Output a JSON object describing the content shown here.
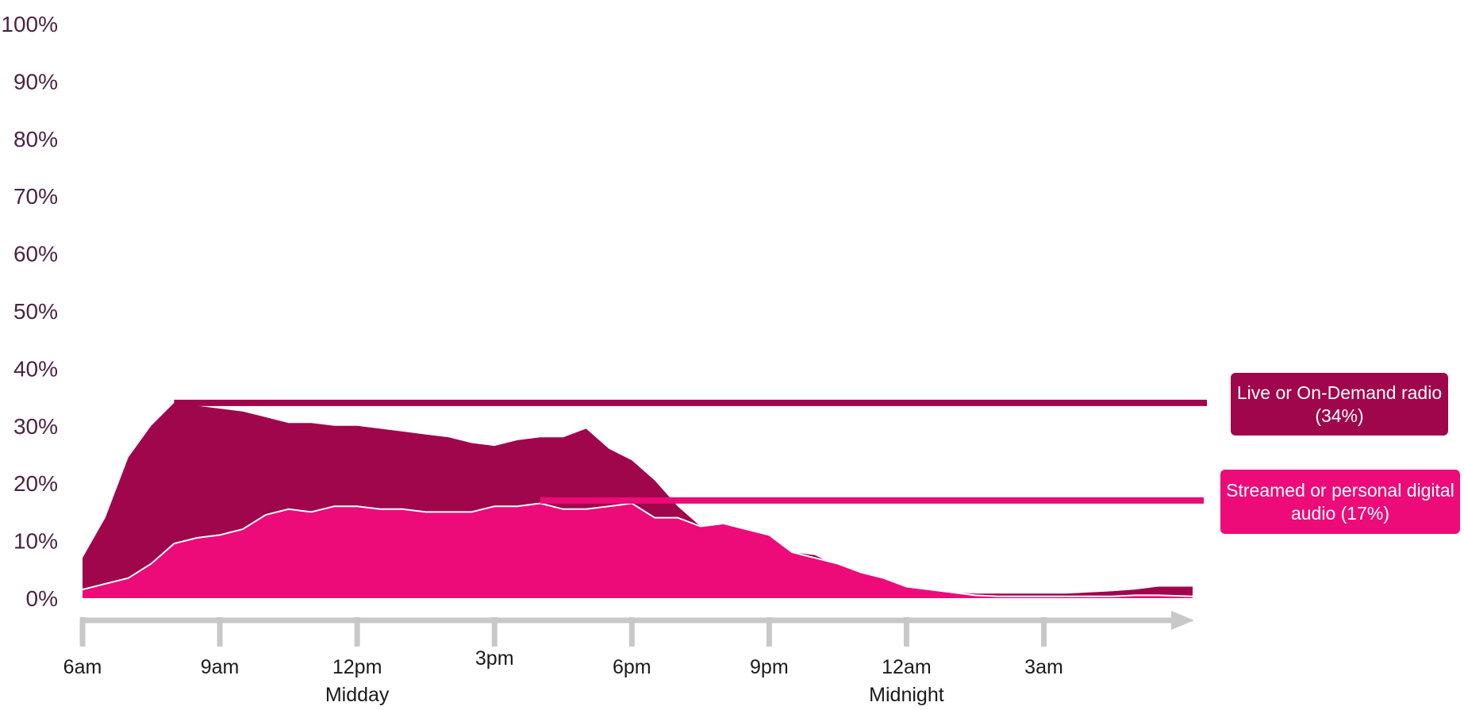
{
  "chart_data": {
    "type": "area",
    "y_tick_labels": [
      "0%",
      "10%",
      "20%",
      "30%",
      "40%",
      "50%",
      "60%",
      "70%",
      "80%",
      "90%",
      "100%"
    ],
    "ylim": [
      0,
      100
    ],
    "x_axis": {
      "start_hour": 6,
      "end_hour": 30.25,
      "ticks": [
        {
          "hour": 6,
          "label": "6am",
          "sublabel": ""
        },
        {
          "hour": 9,
          "label": "9am",
          "sublabel": ""
        },
        {
          "hour": 12,
          "label": "12pm",
          "sublabel": "Midday"
        },
        {
          "hour": 15,
          "label": "3pm",
          "sublabel": ""
        },
        {
          "hour": 18,
          "label": "6pm",
          "sublabel": ""
        },
        {
          "hour": 21,
          "label": "9pm",
          "sublabel": ""
        },
        {
          "hour": 24,
          "label": "12am",
          "sublabel": "Midnight"
        },
        {
          "hour": 27,
          "label": "3am",
          "sublabel": ""
        }
      ]
    },
    "series": [
      {
        "name": "Live or On-Demand radio",
        "legend_line1": "Live or On-Demand radio",
        "legend_line2": "(34%)",
        "peak_value": 34,
        "peak_hour": 8,
        "color": "#a0064b",
        "x": [
          6,
          6.5,
          7,
          7.5,
          8,
          8.5,
          9,
          9.5,
          10,
          10.5,
          11,
          11.5,
          12,
          12.5,
          13,
          13.5,
          14,
          14.5,
          15,
          15.5,
          16,
          16.5,
          17,
          17.5,
          18,
          18.5,
          19,
          19.5,
          20,
          20.5,
          21,
          21.5,
          22,
          22.5,
          23,
          23.5,
          24,
          24.5,
          25,
          25.5,
          26,
          26.5,
          27,
          27.5,
          28,
          28.5,
          29,
          29.5,
          30.25
        ],
        "values": [
          7,
          14,
          24.5,
          30,
          34,
          33.5,
          33,
          32.5,
          31.5,
          30.5,
          30.5,
          30,
          30,
          29.5,
          29,
          28.5,
          28,
          27,
          26.5,
          27.5,
          28,
          28,
          29.5,
          26,
          24,
          20.5,
          16,
          12.5,
          13,
          12,
          11,
          8,
          7.5,
          5.5,
          4,
          2.5,
          1.5,
          1.5,
          1,
          0.8,
          0.8,
          0.8,
          0.8,
          0.8,
          1,
          1.2,
          1.5,
          2,
          2
        ]
      },
      {
        "name": "Streamed or personal digital audio",
        "legend_line1": "Streamed or personal digital",
        "legend_line2": "audio (17%)",
        "peak_value": 17,
        "peak_hour": 16,
        "color": "#ec0b78",
        "x": [
          6,
          6.5,
          7,
          7.5,
          8,
          8.5,
          9,
          9.5,
          10,
          10.5,
          11,
          11.5,
          12,
          12.5,
          13,
          13.5,
          14,
          14.5,
          15,
          15.5,
          16,
          16.5,
          17,
          17.5,
          18,
          18.5,
          19,
          19.5,
          20,
          20.5,
          21,
          21.5,
          22,
          22.5,
          23,
          23.5,
          24,
          24.5,
          25,
          25.5,
          26,
          26.5,
          27,
          27.5,
          28,
          28.5,
          29,
          29.5,
          30.25
        ],
        "values": [
          1.5,
          2.5,
          3.5,
          6,
          9.5,
          10.5,
          11,
          12,
          14.5,
          15.5,
          15,
          16,
          16,
          15.5,
          15.5,
          15,
          15,
          15,
          16,
          16,
          16.5,
          15.5,
          15.5,
          16,
          16.5,
          14,
          14,
          12.5,
          13,
          12,
          11,
          8,
          7,
          6,
          4.5,
          3.5,
          2,
          1.5,
          1,
          0.5,
          0.3,
          0.3,
          0.3,
          0.3,
          0.3,
          0.3,
          0.5,
          0.5,
          0.3
        ]
      }
    ],
    "grid": false
  }
}
